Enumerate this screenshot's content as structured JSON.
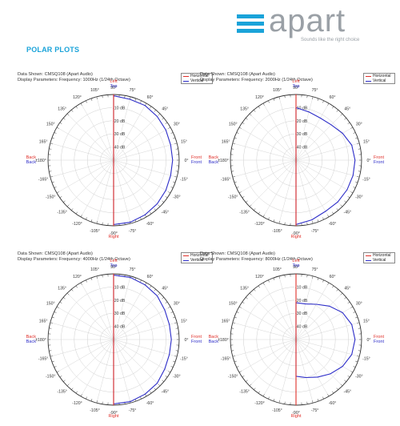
{
  "brand": {
    "name": "apart",
    "tagline": "Sounds like the right choice",
    "accent": "#1aa3d9"
  },
  "section_title": "POLAR PLOTS",
  "colors": {
    "horizontal": "#e0302a",
    "vertical": "#2c2cc8",
    "side_red": "#e0302a",
    "side_blue": "#2c2cc8"
  },
  "labels": {
    "left": "Left",
    "top": "Top",
    "right": "Right",
    "bottom": "Bottom",
    "back_h": "Back",
    "back_v": "Back",
    "front_h": "Front",
    "front_v": "Front",
    "legend_h": "Horizontal",
    "legend_v": "Vertical",
    "angles": [
      "90°",
      "75°",
      "60°",
      "45°",
      "30°",
      "15°",
      "0°",
      "-15°",
      "-30°",
      "-45°",
      "-60°",
      "-75°",
      "-90°",
      "-105°",
      "-120°",
      "-135°",
      "-150°",
      "-165°",
      "±180°",
      "165°",
      "150°",
      "135°",
      "120°",
      "105°"
    ],
    "db_rings": [
      "-10 dB",
      "-20 dB",
      "-30 dB",
      "-40 dB"
    ]
  },
  "chart_data": [
    {
      "type": "polar",
      "data_shown": "Data Shown:   CMSQ108 (Apart Audio)",
      "display_params": "Display Parameters:   Frequency: 1000Hz (1/24th Octave)",
      "r_range_db": [
        -50,
        0
      ],
      "grid": true,
      "series": [
        {
          "name": "Vertical",
          "angles_deg": [
            90,
            75,
            60,
            45,
            30,
            15,
            0,
            -15,
            -30,
            -45,
            -60,
            -75,
            -90
          ],
          "values_db": [
            -1,
            -2,
            -2,
            -3,
            -4,
            -5,
            -5,
            -5,
            -4,
            -3,
            -2,
            -1,
            -1
          ]
        },
        {
          "name": "Horizontal",
          "angles_deg": [
            90,
            -90
          ],
          "values_db": [
            0,
            0
          ]
        }
      ]
    },
    {
      "type": "polar",
      "data_shown": "Data Shown:   CMSQ108 (Apart Audio)",
      "display_params": "Display Parameters:   Frequency: 2000Hz (1/24th Octave)",
      "r_range_db": [
        -50,
        0
      ],
      "grid": true,
      "series": [
        {
          "name": "Vertical",
          "angles_deg": [
            90,
            75,
            60,
            45,
            30,
            15,
            0,
            -15,
            -30,
            -45,
            -60,
            -75,
            -90
          ],
          "values_db": [
            -10,
            -12,
            -13,
            -12,
            -9,
            -6,
            -5,
            -5,
            -5,
            -5,
            -5,
            -3,
            -1
          ]
        },
        {
          "name": "Horizontal",
          "angles_deg": [
            90,
            -90
          ],
          "values_db": [
            0,
            0
          ]
        }
      ]
    },
    {
      "type": "polar",
      "data_shown": "Data Shown:   CMSQ108 (Apart Audio)",
      "display_params": "Display Parameters:   Frequency: 4000Hz (1/24th Octave)",
      "r_range_db": [
        -50,
        0
      ],
      "grid": true,
      "series": [
        {
          "name": "Vertical",
          "angles_deg": [
            90,
            75,
            60,
            45,
            30,
            15,
            0,
            -15,
            -30,
            -45,
            -60,
            -75,
            -90
          ],
          "values_db": [
            -1,
            -1,
            -2,
            -3,
            -5,
            -6,
            -6,
            -6,
            -5,
            -3,
            -2,
            -1,
            -1
          ]
        },
        {
          "name": "Horizontal",
          "angles_deg": [
            90,
            -90
          ],
          "values_db": [
            0,
            0
          ]
        }
      ]
    },
    {
      "type": "polar",
      "data_shown": "Data Shown:   CMSQ108 (Apart Audio)",
      "display_params": "Display Parameters:   Frequency: 8000Hz (1/24th Octave)",
      "r_range_db": [
        -50,
        0
      ],
      "grid": true,
      "series": [
        {
          "name": "Vertical",
          "angles_deg": [
            90,
            75,
            60,
            45,
            30,
            15,
            0,
            -15,
            -30,
            -45,
            -60,
            -75,
            -90
          ],
          "values_db": [
            -22,
            -22,
            -19,
            -14,
            -9,
            -6,
            -5,
            -6,
            -9,
            -13,
            -17,
            -20,
            -22
          ]
        },
        {
          "name": "Horizontal",
          "angles_deg": [
            90,
            -90
          ],
          "values_db": [
            0,
            0
          ]
        }
      ]
    }
  ]
}
